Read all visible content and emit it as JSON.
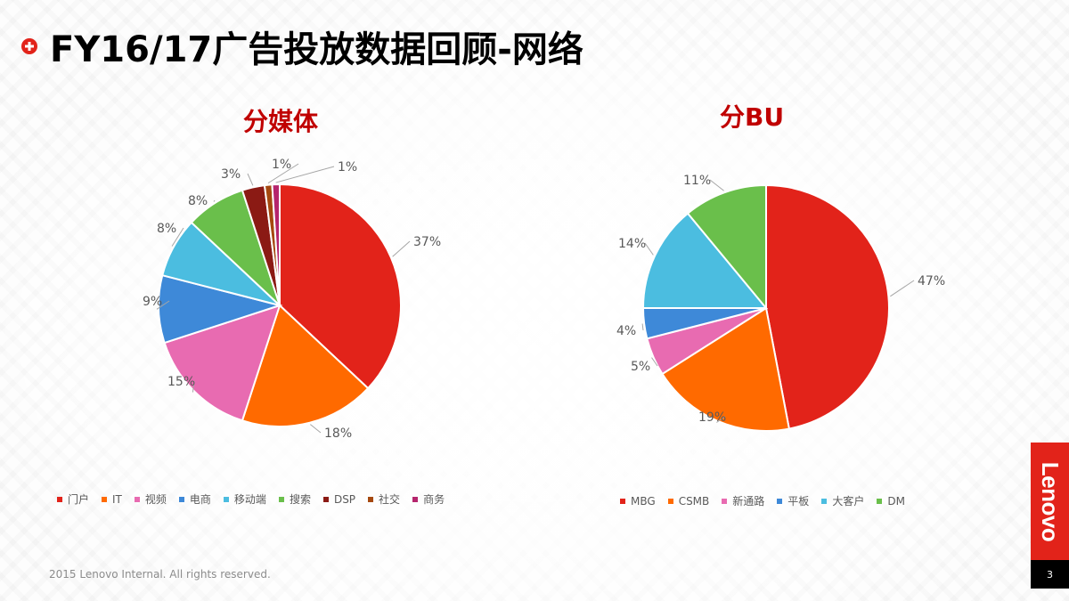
{
  "slide": {
    "title": "FY16/17广告投放数据回顾-网络",
    "footer": "2015 Lenovo Internal. All rights reserved.",
    "logo": "Lenovo",
    "page_number": "3",
    "brand_color": "#e2231a"
  },
  "chart_data": [
    {
      "type": "pie",
      "title": "分媒体",
      "categories": [
        "门户",
        "IT",
        "视频",
        "电商",
        "移动端",
        "搜索",
        "DSP",
        "社交",
        "商务"
      ],
      "values": [
        37,
        18,
        15,
        9,
        8,
        8,
        3,
        1,
        1
      ],
      "labels": [
        "37%",
        "18%",
        "15%",
        "9%",
        "8%",
        "8%",
        "3%",
        "1%",
        "1%"
      ],
      "colors": [
        "#e2231a",
        "#ff6a00",
        "#e86bb1",
        "#3e89d8",
        "#4bbde0",
        "#6abf4b",
        "#8b1a14",
        "#a5480f",
        "#b5256d"
      ],
      "start_angle_deg": 0,
      "direction": "clockwise",
      "legend_position": "bottom"
    },
    {
      "type": "pie",
      "title": "分BU",
      "categories": [
        "MBG",
        "CSMB",
        "新通路",
        "平板",
        "大客户",
        "DM"
      ],
      "values": [
        47,
        19,
        5,
        4,
        14,
        11
      ],
      "labels": [
        "47%",
        "19%",
        "5%",
        "4%",
        "14%",
        "11%"
      ],
      "colors": [
        "#e2231a",
        "#ff6a00",
        "#e86bb1",
        "#3e89d8",
        "#4bbde0",
        "#6abf4b"
      ],
      "start_angle_deg": 0,
      "direction": "clockwise",
      "legend_position": "bottom"
    }
  ]
}
